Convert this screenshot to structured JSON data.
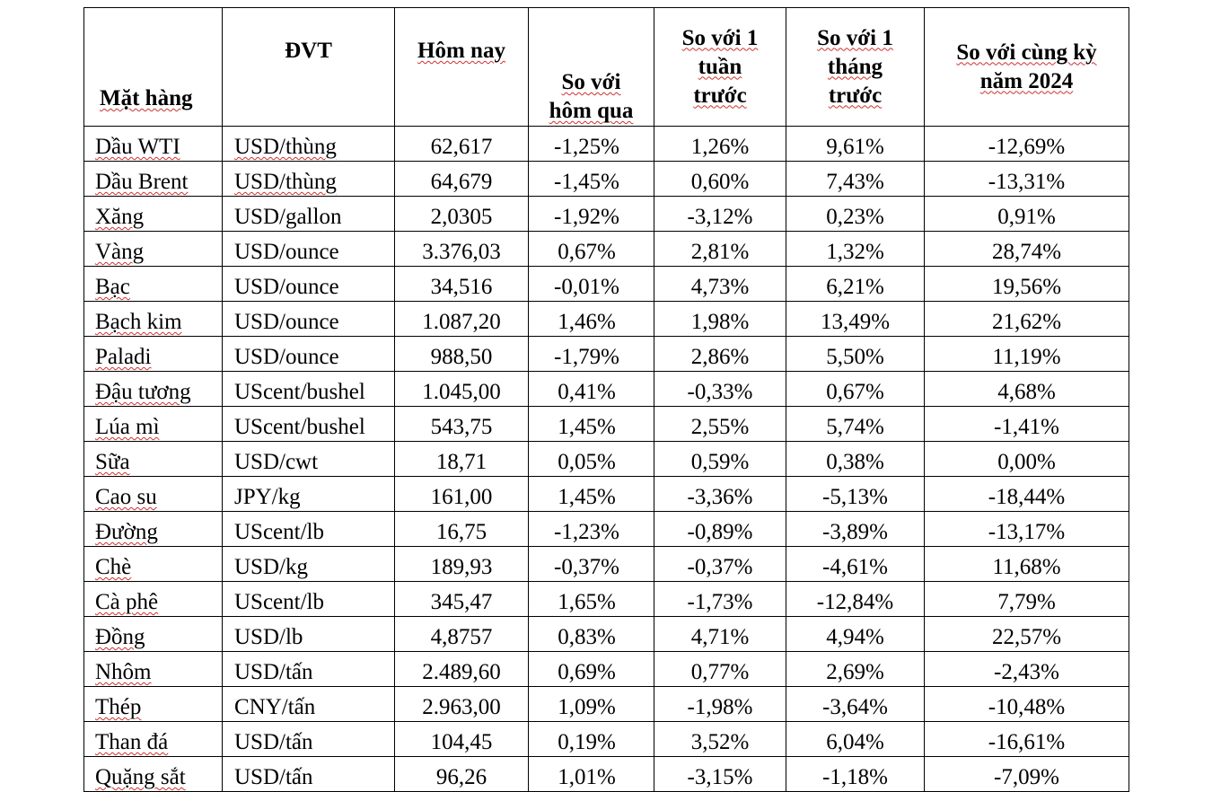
{
  "table": {
    "headers": {
      "item": "Mặt hàng",
      "unit": "ĐVT",
      "today": "Hôm nay",
      "vs_yesterday_l1": "So với",
      "vs_yesterday_l2": "hôm qua",
      "vs_week_l1": "So với 1",
      "vs_week_l2": "tuần",
      "vs_week_l3": "trước",
      "vs_month_l1": "So với 1",
      "vs_month_l2": "tháng",
      "vs_month_l3": "trước",
      "vs_year_l1": "So với cùng kỳ",
      "vs_year_l2": "năm 2024"
    },
    "rows": [
      {
        "item": "Dầu WTI",
        "unit": "USD/thùng",
        "today": "62,617",
        "d1": "-1,25%",
        "w1": "1,26%",
        "m1": "9,61%",
        "y1": "-12,69%"
      },
      {
        "item": "Dầu Brent",
        "unit": "USD/thùng",
        "today": "64,679",
        "d1": "-1,45%",
        "w1": "0,60%",
        "m1": "7,43%",
        "y1": "-13,31%"
      },
      {
        "item": "Xăng",
        "unit": "USD/gallon",
        "today": "2,0305",
        "d1": "-1,92%",
        "w1": "-3,12%",
        "m1": "0,23%",
        "y1": "0,91%"
      },
      {
        "item": "Vàng",
        "unit": "USD/ounce",
        "today": "3.376,03",
        "d1": "0,67%",
        "w1": "2,81%",
        "m1": "1,32%",
        "y1": "28,74%"
      },
      {
        "item": "Bạc",
        "unit": "USD/ounce",
        "today": "34,516",
        "d1": "-0,01%",
        "w1": "4,73%",
        "m1": "6,21%",
        "y1": "19,56%"
      },
      {
        "item": "Bạch kim",
        "unit": "USD/ounce",
        "today": "1.087,20",
        "d1": "1,46%",
        "w1": "1,98%",
        "m1": "13,49%",
        "y1": "21,62%"
      },
      {
        "item": "Paladi",
        "unit": "USD/ounce",
        "today": "988,50",
        "d1": "-1,79%",
        "w1": "2,86%",
        "m1": "5,50%",
        "y1": "11,19%"
      },
      {
        "item": "Đậu tương",
        "unit": "UScent/bushel",
        "today": "1.045,00",
        "d1": "0,41%",
        "w1": "-0,33%",
        "m1": "0,67%",
        "y1": "4,68%"
      },
      {
        "item": "Lúa mì",
        "unit": "UScent/bushel",
        "today": "543,75",
        "d1": "1,45%",
        "w1": "2,55%",
        "m1": "5,74%",
        "y1": "-1,41%"
      },
      {
        "item": "Sữa",
        "unit": "USD/cwt",
        "today": "18,71",
        "d1": "0,05%",
        "w1": "0,59%",
        "m1": "0,38%",
        "y1": "0,00%"
      },
      {
        "item": "Cao su",
        "unit": "JPY/kg",
        "today": "161,00",
        "d1": "1,45%",
        "w1": "-3,36%",
        "m1": "-5,13%",
        "y1": "-18,44%"
      },
      {
        "item": "Đường",
        "unit": "UScent/lb",
        "today": "16,75",
        "d1": "-1,23%",
        "w1": "-0,89%",
        "m1": "-3,89%",
        "y1": "-13,17%"
      },
      {
        "item": "Chè",
        "unit": "USD/kg",
        "today": "189,93",
        "d1": "-0,37%",
        "w1": "-0,37%",
        "m1": "-4,61%",
        "y1": "11,68%"
      },
      {
        "item": "Cà phê",
        "unit": "UScent/lb",
        "today": "345,47",
        "d1": "1,65%",
        "w1": "-1,73%",
        "m1": "-12,84%",
        "y1": "7,79%"
      },
      {
        "item": "Đồng",
        "unit": "USD/lb",
        "today": "4,8757",
        "d1": "0,83%",
        "w1": "4,71%",
        "m1": "4,94%",
        "y1": "22,57%"
      },
      {
        "item": "Nhôm",
        "unit": "USD/tấn",
        "today": "2.489,60",
        "d1": "0,69%",
        "w1": "0,77%",
        "m1": "2,69%",
        "y1": "-2,43%"
      },
      {
        "item": "Thép",
        "unit": "CNY/tấn",
        "today": "2.963,00",
        "d1": "1,09%",
        "w1": "-1,98%",
        "m1": "-3,64%",
        "y1": "-10,48%"
      },
      {
        "item": "Than đá",
        "unit": "USD/tấn",
        "today": "104,45",
        "d1": "0,19%",
        "w1": "3,52%",
        "m1": "6,04%",
        "y1": "-16,61%"
      },
      {
        "item": "Quặng sắt",
        "unit": "USD/tấn",
        "today": "96,26",
        "d1": "1,01%",
        "w1": "-3,15%",
        "m1": "-1,18%",
        "y1": "-7,09%"
      }
    ]
  }
}
